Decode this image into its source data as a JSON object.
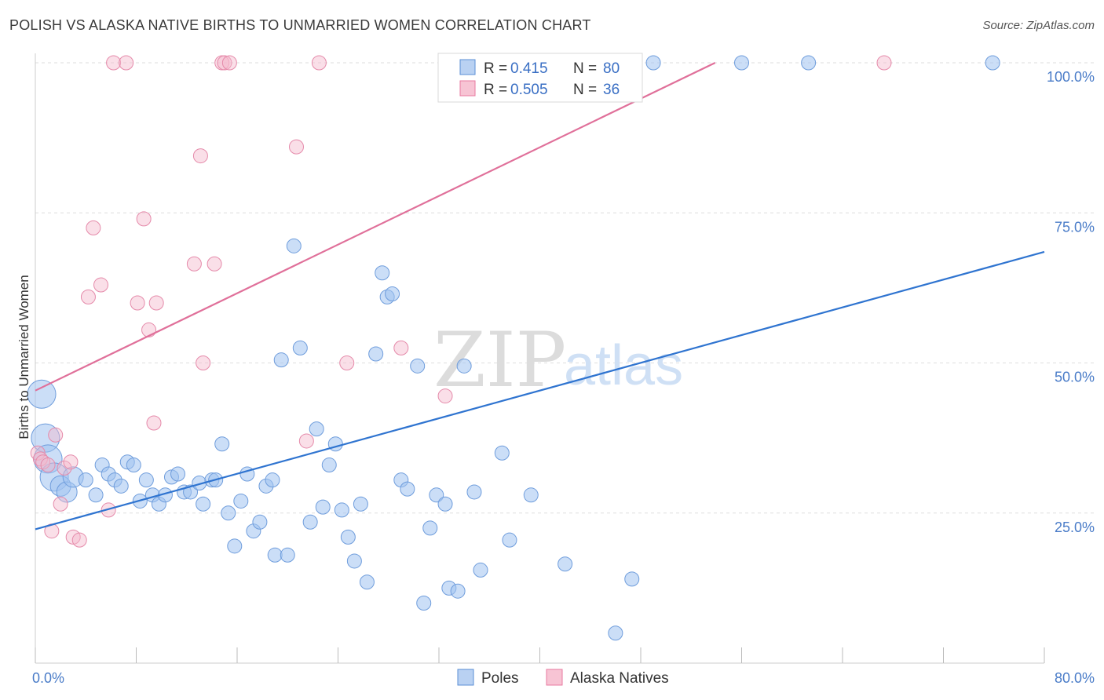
{
  "header": {
    "title": "POLISH VS ALASKA NATIVE BIRTHS TO UNMARRIED WOMEN CORRELATION CHART",
    "source": "Source: ZipAtlas.com"
  },
  "watermark": {
    "zip": "ZIP",
    "atlas": "atlas"
  },
  "legend": {
    "rows": [
      {
        "r_label": "R =",
        "r_value": "0.415",
        "n_label": "N =",
        "n_value": "80"
      },
      {
        "r_label": "R =",
        "r_value": "0.505",
        "n_label": "N =",
        "n_value": "36"
      }
    ]
  },
  "bottom_legend": {
    "poles": "Poles",
    "alaska": "Alaska Natives"
  },
  "chart_data": {
    "type": "scatter",
    "title": "POLISH VS ALASKA NATIVE BIRTHS TO UNMARRIED WOMEN CORRELATION CHART",
    "xlabel": "",
    "ylabel": "Births to Unmarried Women",
    "xlim": [
      0,
      80
    ],
    "ylim": [
      0,
      100
    ],
    "x_tick_labels": [
      "0.0%",
      "80.0%"
    ],
    "y_tick_labels": [
      "25.0%",
      "50.0%",
      "75.0%",
      "100.0%"
    ],
    "y_ticks": [
      25,
      50,
      75,
      100
    ],
    "grid": true,
    "legend_position": "top-center",
    "colors": {
      "poles": "#5b8fd6",
      "poles_fill": "#b9d1f2",
      "alaska": "#e87aa0",
      "alaska_fill": "#f7c4d4",
      "poles_line": "#2f74d0",
      "alaska_line": "#e0709a"
    },
    "series": [
      {
        "name": "Poles",
        "r": "0.415",
        "n": "80",
        "trend": [
          [
            0,
            22.3
          ],
          [
            80,
            68.5
          ]
        ],
        "points": [
          [
            0.5,
            44.8,
            3
          ],
          [
            0.8,
            37.5,
            3
          ],
          [
            1.0,
            34.0,
            3
          ],
          [
            1.5,
            31.0,
            3
          ],
          [
            2.0,
            29.5,
            2
          ],
          [
            2.5,
            28.5,
            2
          ],
          [
            3.0,
            31.0,
            2
          ],
          [
            4.0,
            30.5,
            1
          ],
          [
            4.8,
            28.0,
            1
          ],
          [
            5.3,
            33.0,
            1
          ],
          [
            5.8,
            31.5,
            1
          ],
          [
            6.3,
            30.5,
            1
          ],
          [
            6.8,
            29.5,
            1
          ],
          [
            7.3,
            33.5,
            1
          ],
          [
            7.8,
            33.0,
            1
          ],
          [
            8.3,
            27.0,
            1
          ],
          [
            8.8,
            30.5,
            1
          ],
          [
            9.3,
            28.0,
            1
          ],
          [
            9.8,
            26.5,
            1
          ],
          [
            10.3,
            28.0,
            1
          ],
          [
            10.8,
            31.0,
            1
          ],
          [
            11.3,
            31.5,
            1
          ],
          [
            11.8,
            28.5,
            1
          ],
          [
            12.3,
            28.5,
            1
          ],
          [
            13.0,
            30.0,
            1
          ],
          [
            13.3,
            26.5,
            1
          ],
          [
            14.0,
            30.5,
            1
          ],
          [
            14.3,
            30.5,
            1
          ],
          [
            14.8,
            36.5,
            1
          ],
          [
            15.3,
            25.0,
            1
          ],
          [
            15.8,
            19.5,
            1
          ],
          [
            16.3,
            27.0,
            1
          ],
          [
            16.8,
            31.5,
            1
          ],
          [
            17.3,
            22.0,
            1
          ],
          [
            17.8,
            23.5,
            1
          ],
          [
            18.3,
            29.5,
            1
          ],
          [
            18.8,
            30.5,
            1
          ],
          [
            19.0,
            18.0,
            1
          ],
          [
            19.5,
            50.5,
            1
          ],
          [
            20.0,
            18.0,
            1
          ],
          [
            20.5,
            69.5,
            1
          ],
          [
            21.0,
            52.5,
            1
          ],
          [
            21.8,
            23.5,
            1
          ],
          [
            22.3,
            39.0,
            1
          ],
          [
            22.8,
            26.0,
            1
          ],
          [
            23.3,
            33.0,
            1
          ],
          [
            23.8,
            36.5,
            1
          ],
          [
            24.3,
            25.5,
            1
          ],
          [
            24.8,
            21.0,
            1
          ],
          [
            25.3,
            17.0,
            1
          ],
          [
            25.8,
            26.5,
            1
          ],
          [
            26.3,
            13.5,
            1
          ],
          [
            27.0,
            51.5,
            1
          ],
          [
            27.5,
            65.0,
            1
          ],
          [
            27.9,
            61.0,
            1
          ],
          [
            28.3,
            61.5,
            1
          ],
          [
            29.0,
            30.5,
            1
          ],
          [
            29.5,
            29.0,
            1
          ],
          [
            30.3,
            49.5,
            1
          ],
          [
            30.8,
            10.0,
            1
          ],
          [
            31.3,
            22.5,
            1
          ],
          [
            31.8,
            28.0,
            1
          ],
          [
            32.5,
            26.5,
            1
          ],
          [
            32.8,
            12.5,
            1
          ],
          [
            33.5,
            12.0,
            1
          ],
          [
            34.0,
            49.5,
            1
          ],
          [
            34.8,
            28.5,
            1
          ],
          [
            35.3,
            15.5,
            1
          ],
          [
            37.0,
            35.0,
            1
          ],
          [
            37.6,
            20.5,
            1
          ],
          [
            39.3,
            28.0,
            1
          ],
          [
            42.0,
            16.5,
            1
          ],
          [
            46.0,
            5.0,
            1
          ],
          [
            47.3,
            14.0,
            1
          ],
          [
            35.8,
            100,
            1
          ],
          [
            49.0,
            100,
            1
          ],
          [
            56.0,
            100,
            1
          ],
          [
            61.3,
            100,
            1
          ],
          [
            75.9,
            100,
            1
          ],
          [
            34.6,
            100,
            1
          ]
        ]
      },
      {
        "name": "Alaska Natives",
        "r": "0.505",
        "n": "36",
        "trend": [
          [
            0,
            45.4
          ],
          [
            53.9,
            100
          ]
        ],
        "points": [
          [
            0.2,
            35.0,
            1
          ],
          [
            0.4,
            34.0,
            1
          ],
          [
            0.6,
            33.5,
            1
          ],
          [
            1.0,
            33.0,
            1
          ],
          [
            1.3,
            22.0,
            1
          ],
          [
            1.6,
            38.0,
            1
          ],
          [
            2.0,
            26.5,
            1
          ],
          [
            2.3,
            32.5,
            1
          ],
          [
            2.8,
            33.5,
            1
          ],
          [
            3.0,
            21.0,
            1
          ],
          [
            3.5,
            20.5,
            1
          ],
          [
            4.2,
            61.0,
            1
          ],
          [
            4.6,
            72.5,
            1
          ],
          [
            5.2,
            63.0,
            1
          ],
          [
            5.8,
            25.5,
            1
          ],
          [
            6.2,
            100,
            1
          ],
          [
            7.2,
            100,
            1
          ],
          [
            8.1,
            60.0,
            1
          ],
          [
            8.6,
            74.0,
            1
          ],
          [
            9.0,
            55.5,
            1
          ],
          [
            9.4,
            40.0,
            1
          ],
          [
            9.6,
            60.0,
            1
          ],
          [
            12.6,
            66.5,
            1
          ],
          [
            13.1,
            84.5,
            1
          ],
          [
            13.3,
            50.0,
            1
          ],
          [
            14.2,
            66.5,
            1
          ],
          [
            14.8,
            100,
            1
          ],
          [
            15.0,
            100,
            1
          ],
          [
            15.4,
            100,
            1
          ],
          [
            20.7,
            86.0,
            1
          ],
          [
            21.5,
            37.0,
            1
          ],
          [
            22.5,
            100,
            1
          ],
          [
            24.7,
            50.0,
            1
          ],
          [
            29.0,
            52.5,
            1
          ],
          [
            32.5,
            44.5,
            1
          ],
          [
            67.3,
            100,
            1
          ]
        ]
      }
    ]
  }
}
